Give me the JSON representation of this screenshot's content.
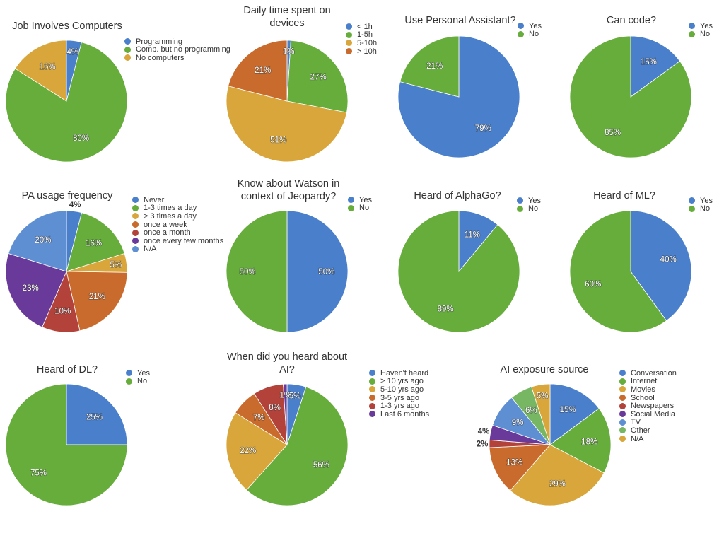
{
  "colors": {
    "blue": "#4a7fcb",
    "green": "#66ad3c",
    "gold": "#d8a63a",
    "orange": "#c96b2c",
    "red": "#b3423b",
    "purple": "#6a3a9a",
    "lightblue": "#5f8fd3",
    "lightgreen": "#77b764"
  },
  "chart_data": [
    {
      "type": "pie",
      "title": "Job Involves Computers",
      "legend": "right",
      "slices": [
        {
          "label": "Programming",
          "value": 4,
          "display": "4%",
          "color": "#4a7fcb"
        },
        {
          "label": "Comp. but no programming",
          "value": 80,
          "display": "80%",
          "color": "#66ad3c"
        },
        {
          "label": "No computers",
          "value": 16,
          "display": "16%",
          "color": "#d8a63a"
        }
      ]
    },
    {
      "type": "pie",
      "title": "Daily time spent on devices",
      "legend": "right",
      "slices": [
        {
          "label": "< 1h",
          "value": 1,
          "display": "1%",
          "color": "#4a7fcb"
        },
        {
          "label": "1-5h",
          "value": 27,
          "display": "27%",
          "color": "#66ad3c"
        },
        {
          "label": "5-10h",
          "value": 51,
          "display": "51%",
          "color": "#d8a63a"
        },
        {
          "label": "> 10h",
          "value": 21,
          "display": "21%",
          "color": "#c96b2c"
        }
      ]
    },
    {
      "type": "pie",
      "title": "Use Personal Assistant?",
      "legend": "right",
      "slices": [
        {
          "label": "Yes",
          "value": 79,
          "display": "79%",
          "color": "#4a7fcb"
        },
        {
          "label": "No",
          "value": 21,
          "display": "21%",
          "color": "#66ad3c"
        }
      ]
    },
    {
      "type": "pie",
      "title": "Can code?",
      "legend": "right",
      "slices": [
        {
          "label": "Yes",
          "value": 15,
          "display": "15%",
          "color": "#4a7fcb"
        },
        {
          "label": "No",
          "value": 85,
          "display": "85%",
          "color": "#66ad3c"
        }
      ]
    },
    {
      "type": "pie",
      "title": "PA usage frequency",
      "legend": "right",
      "slices": [
        {
          "label": "Never",
          "value": 4,
          "display": "4%",
          "color": "#4a7fcb"
        },
        {
          "label": "1-3 times a day",
          "value": 16,
          "display": "16%",
          "color": "#66ad3c"
        },
        {
          "label": "> 3 times a day",
          "value": 5,
          "display": "5%",
          "color": "#d8a63a"
        },
        {
          "label": "once a week",
          "value": 21,
          "display": "21%",
          "color": "#c96b2c"
        },
        {
          "label": "once a month",
          "value": 10,
          "display": "10%",
          "color": "#b3423b"
        },
        {
          "label": "once every few months",
          "value": 23,
          "display": "23%",
          "color": "#6a3a9a"
        },
        {
          "label": "N/A",
          "value": 20,
          "display": "20%",
          "color": "#5f8fd3"
        }
      ]
    },
    {
      "type": "pie",
      "title": "Know about Watson in context of Jeopardy?",
      "legend": "right",
      "slices": [
        {
          "label": "Yes",
          "value": 50,
          "display": "50%",
          "color": "#4a7fcb"
        },
        {
          "label": "No",
          "value": 50,
          "display": "50%",
          "color": "#66ad3c"
        }
      ]
    },
    {
      "type": "pie",
      "title": "Heard of AlphaGo?",
      "legend": "right",
      "slices": [
        {
          "label": "Yes",
          "value": 11,
          "display": "11%",
          "color": "#4a7fcb"
        },
        {
          "label": "No",
          "value": 89,
          "display": "89%",
          "color": "#66ad3c"
        }
      ]
    },
    {
      "type": "pie",
      "title": "Heard of ML?",
      "legend": "right",
      "slices": [
        {
          "label": "Yes",
          "value": 40,
          "display": "40%",
          "color": "#4a7fcb"
        },
        {
          "label": "No",
          "value": 60,
          "display": "60%",
          "color": "#66ad3c"
        }
      ]
    },
    {
      "type": "pie",
      "title": "Heard of DL?",
      "legend": "right",
      "slices": [
        {
          "label": "Yes",
          "value": 25,
          "display": "25%",
          "color": "#4a7fcb"
        },
        {
          "label": "No",
          "value": 75,
          "display": "75%",
          "color": "#66ad3c"
        }
      ]
    },
    {
      "type": "pie",
      "title": "When did you heard about AI?",
      "legend": "right",
      "slices": [
        {
          "label": "Haven't heard",
          "value": 5,
          "display": "5%",
          "color": "#4a7fcb"
        },
        {
          "label": "> 10 yrs ago",
          "value": 56,
          "display": "56%",
          "color": "#66ad3c"
        },
        {
          "label": "5-10 yrs ago",
          "value": 22,
          "display": "22%",
          "color": "#d8a63a"
        },
        {
          "label": "3-5 yrs ago",
          "value": 7,
          "display": "7%",
          "color": "#c96b2c"
        },
        {
          "label": "1-3 yrs ago",
          "value": 8,
          "display": "8%",
          "color": "#b3423b"
        },
        {
          "label": "Last 6 months",
          "value": 1,
          "display": "1%",
          "color": "#6a3a9a"
        }
      ]
    },
    {
      "type": "pie",
      "title": "AI exposure source",
      "legend": "right",
      "slices": [
        {
          "label": "Conversation",
          "value": 15,
          "display": "15%",
          "color": "#4a7fcb"
        },
        {
          "label": "Internet",
          "value": 18,
          "display": "18%",
          "color": "#66ad3c"
        },
        {
          "label": "Movies",
          "value": 29,
          "display": "29%",
          "color": "#d8a63a"
        },
        {
          "label": "School",
          "value": 13,
          "display": "13%",
          "color": "#c96b2c"
        },
        {
          "label": "Newspapers",
          "value": 2,
          "display": "2%",
          "color": "#b3423b"
        },
        {
          "label": "Social Media",
          "value": 4,
          "display": "4%",
          "color": "#6a3a9a"
        },
        {
          "label": "TV",
          "value": 9,
          "display": "9%",
          "color": "#5f8fd3"
        },
        {
          "label": "Other",
          "value": 6,
          "display": "6%",
          "color": "#77b764"
        },
        {
          "label": "N/A",
          "value": 5,
          "display": "5%",
          "color": "#d8a63a"
        }
      ]
    }
  ]
}
